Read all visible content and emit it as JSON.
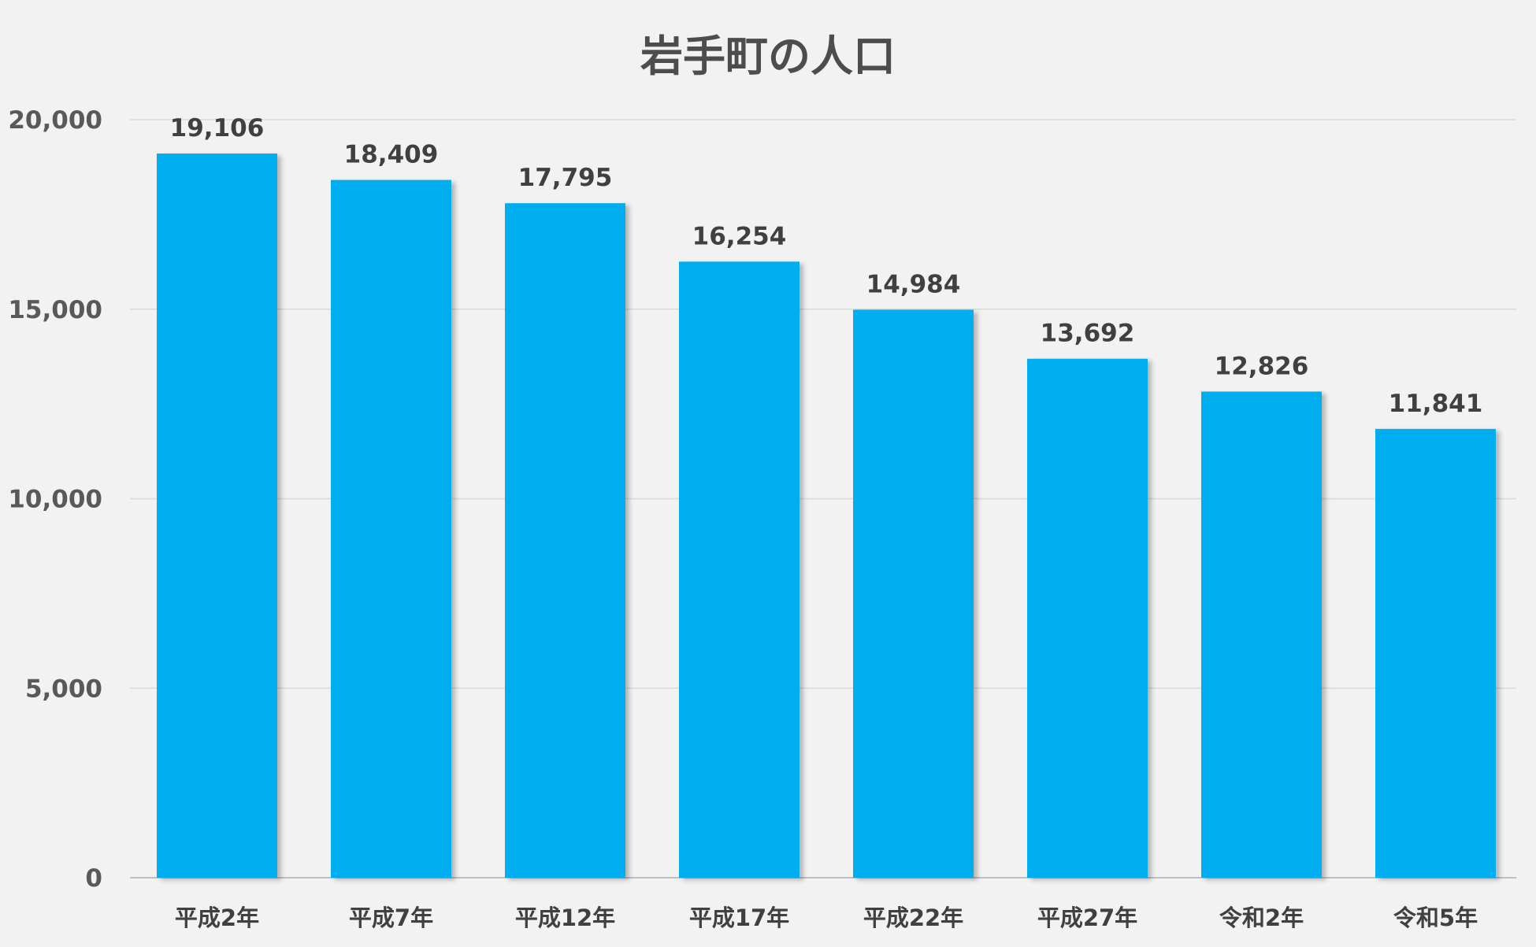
{
  "chart_data": {
    "type": "bar",
    "title": "岩手町の人口",
    "xlabel": "",
    "ylabel": "",
    "categories": [
      "平成2年",
      "平成7年",
      "平成12年",
      "平成17年",
      "平成22年",
      "平成27年",
      "令和2年",
      "令和5年"
    ],
    "values": [
      19106,
      18409,
      17795,
      16254,
      14984,
      13692,
      12826,
      11841
    ],
    "value_labels": [
      "19,106",
      "18,409",
      "17,795",
      "16,254",
      "14,984",
      "13,692",
      "12,826",
      "11,841"
    ],
    "ylim": [
      0,
      20000
    ],
    "yticks": [
      0,
      5000,
      10000,
      15000,
      20000
    ],
    "ytick_labels": [
      "0",
      "5,000",
      "10,000",
      "15,000",
      "20,000"
    ],
    "grid": true,
    "legend": "none",
    "bar_color": "#00aeef"
  }
}
